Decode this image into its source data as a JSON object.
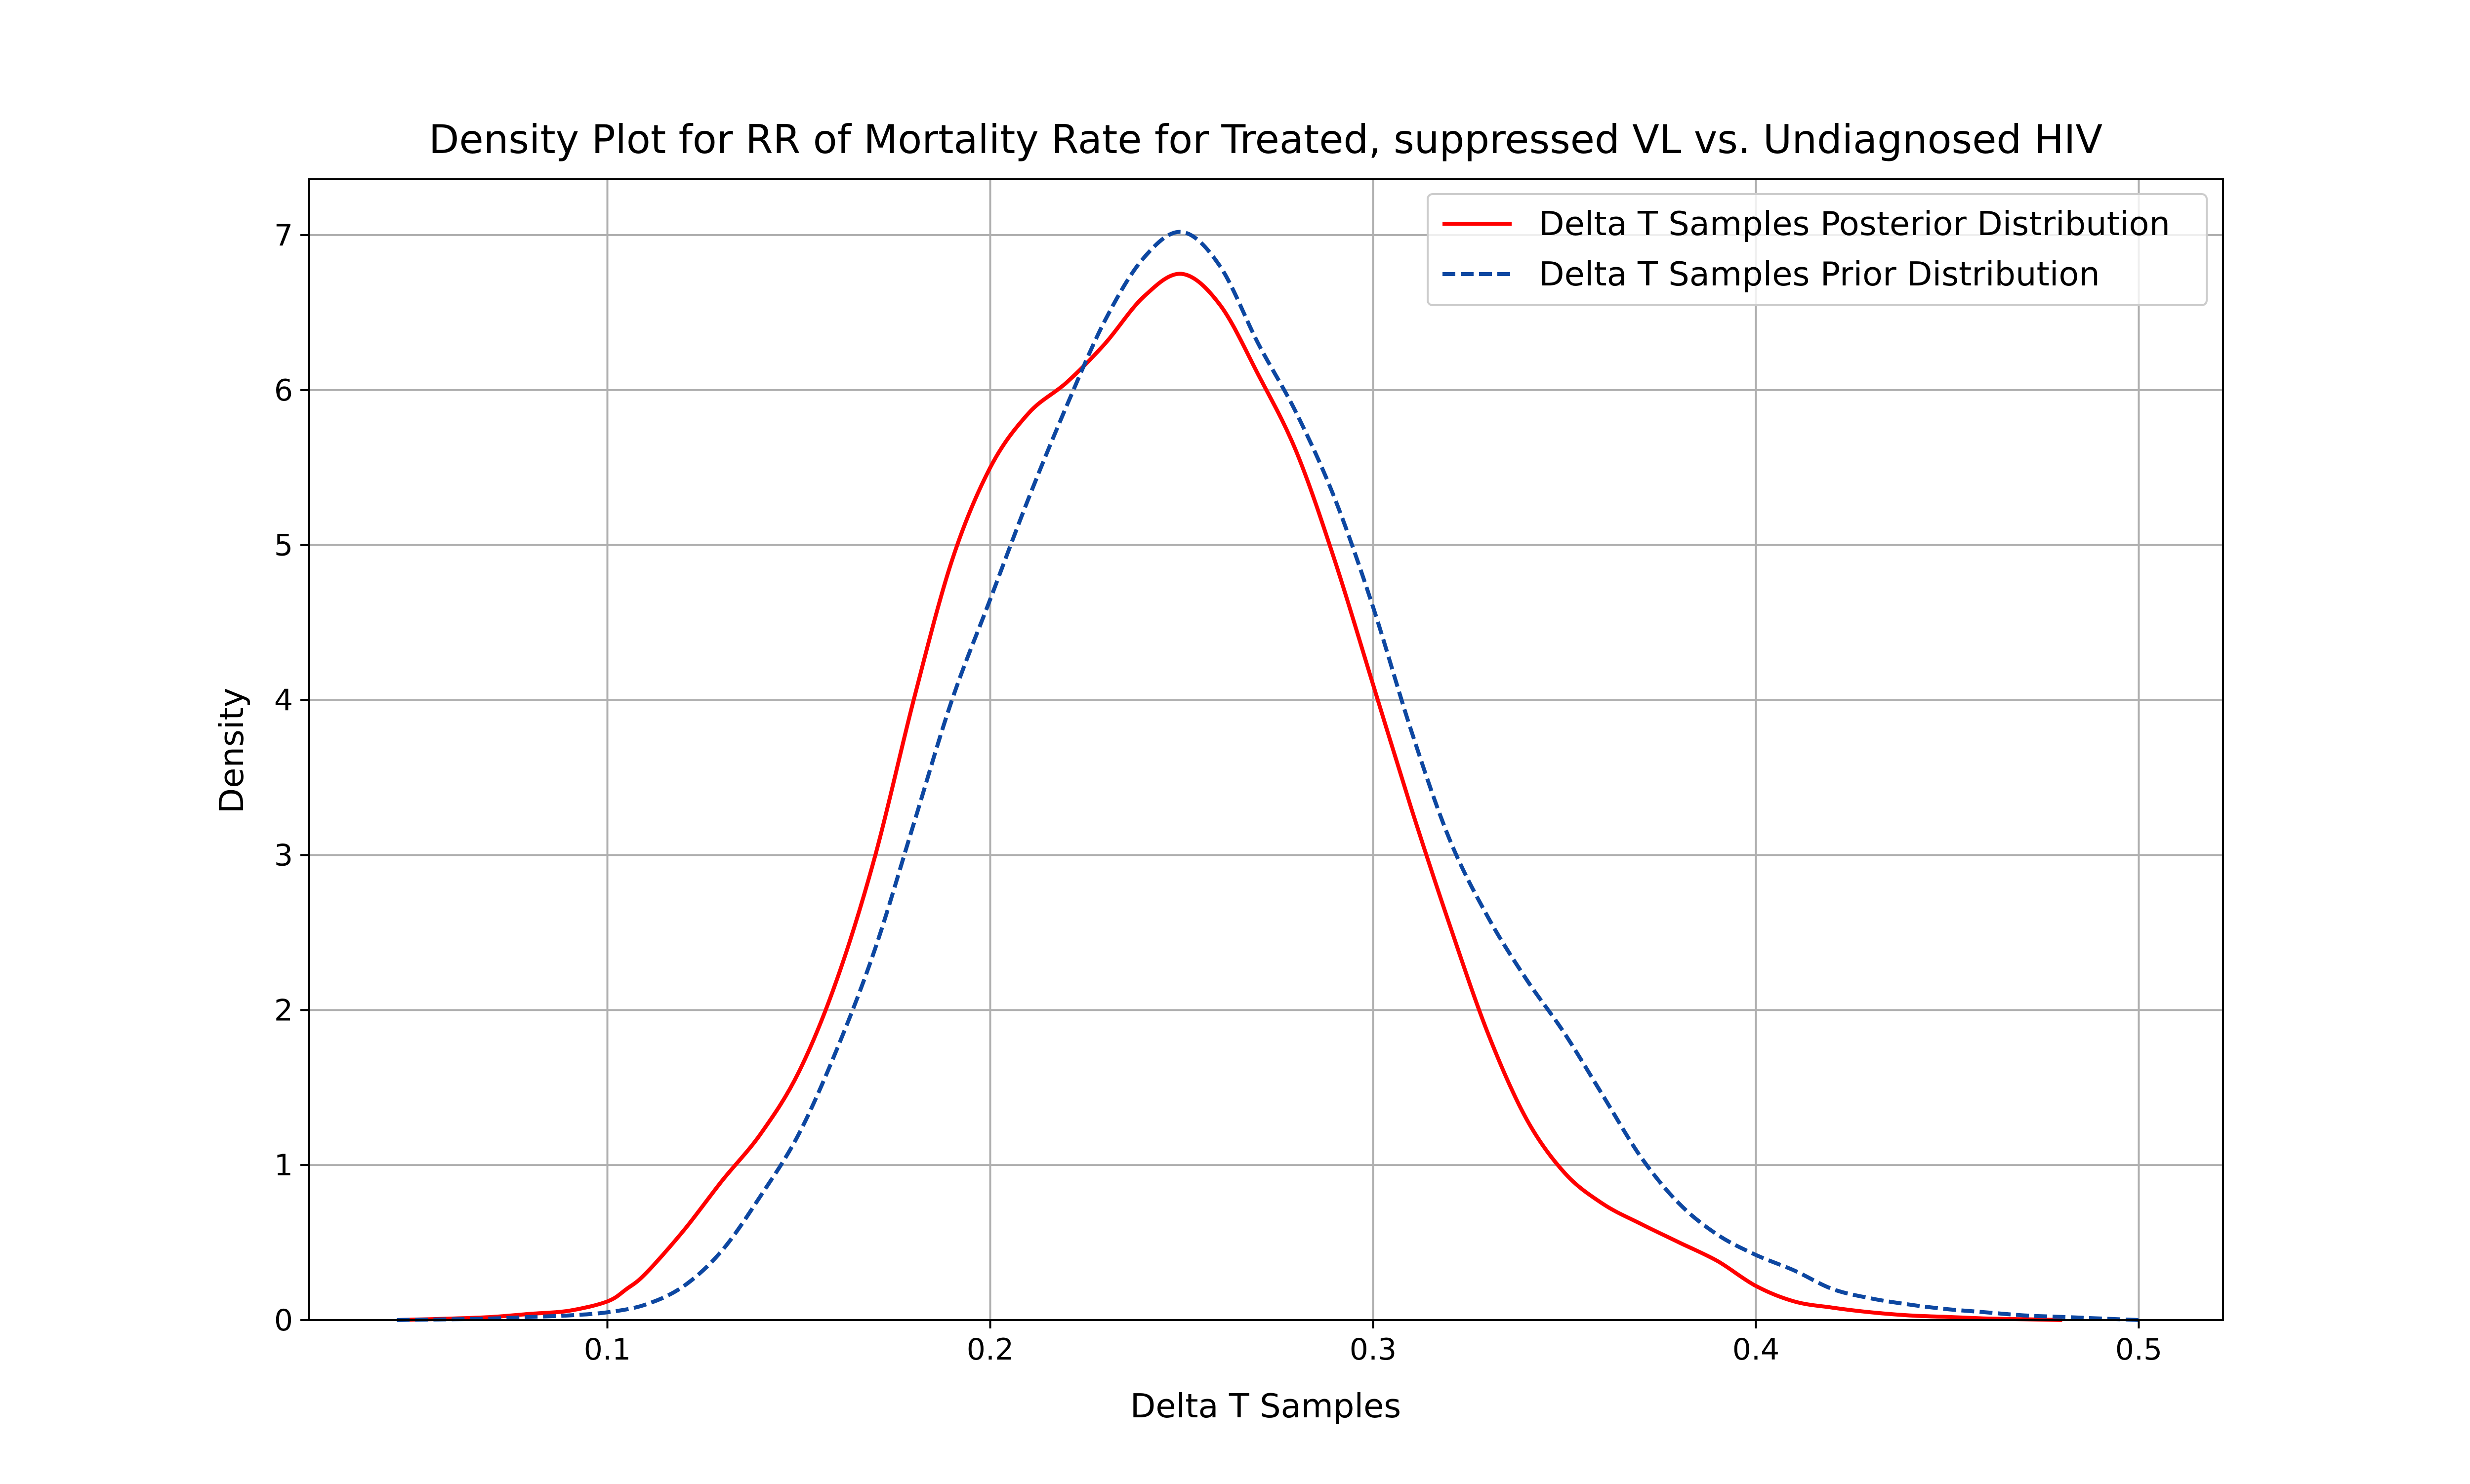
{
  "chart_data": {
    "type": "line",
    "title": "Density Plot for RR of Mortality Rate for Treated, suppressed VL vs. Undiagnosed HIV",
    "xlabel": "Delta T Samples",
    "ylabel": "Density",
    "xlim": [
      0.022,
      0.522
    ],
    "ylim": [
      0,
      7.36
    ],
    "xticks": [
      0.1,
      0.2,
      0.3,
      0.4,
      0.5
    ],
    "xtick_labels": [
      "0.1",
      "0.2",
      "0.3",
      "0.4",
      "0.5"
    ],
    "yticks": [
      0,
      1,
      2,
      3,
      4,
      5,
      6,
      7
    ],
    "ytick_labels": [
      "0",
      "1",
      "2",
      "3",
      "4",
      "5",
      "6",
      "7"
    ],
    "grid": true,
    "legend_position": "top-right",
    "series": [
      {
        "name": "Delta T Samples Posterior Distribution",
        "color": "#ff0000",
        "style": "solid",
        "x": [
          0.045,
          0.06,
          0.07,
          0.08,
          0.09,
          0.1,
          0.105,
          0.11,
          0.12,
          0.13,
          0.14,
          0.15,
          0.16,
          0.17,
          0.18,
          0.19,
          0.2,
          0.21,
          0.22,
          0.23,
          0.24,
          0.25,
          0.26,
          0.27,
          0.28,
          0.29,
          0.3,
          0.31,
          0.32,
          0.33,
          0.34,
          0.35,
          0.36,
          0.37,
          0.38,
          0.39,
          0.4,
          0.41,
          0.42,
          0.43,
          0.44,
          0.45,
          0.46,
          0.47,
          0.48
        ],
        "y": [
          0.0,
          0.01,
          0.02,
          0.04,
          0.06,
          0.12,
          0.2,
          0.3,
          0.58,
          0.9,
          1.2,
          1.6,
          2.2,
          3.0,
          4.0,
          4.9,
          5.5,
          5.85,
          6.05,
          6.3,
          6.6,
          6.75,
          6.55,
          6.1,
          5.6,
          4.9,
          4.1,
          3.3,
          2.55,
          1.85,
          1.3,
          0.95,
          0.75,
          0.62,
          0.5,
          0.38,
          0.22,
          0.12,
          0.08,
          0.05,
          0.03,
          0.02,
          0.01,
          0.005,
          0.0
        ]
      },
      {
        "name": "Delta T Samples Prior Distribution",
        "color": "#0d47a1",
        "style": "dashed",
        "x": [
          0.045,
          0.06,
          0.07,
          0.08,
          0.09,
          0.1,
          0.11,
          0.12,
          0.13,
          0.14,
          0.15,
          0.16,
          0.17,
          0.18,
          0.19,
          0.2,
          0.21,
          0.22,
          0.23,
          0.24,
          0.25,
          0.26,
          0.27,
          0.28,
          0.29,
          0.3,
          0.31,
          0.32,
          0.33,
          0.34,
          0.35,
          0.36,
          0.37,
          0.38,
          0.39,
          0.4,
          0.41,
          0.42,
          0.43,
          0.44,
          0.45,
          0.46,
          0.47,
          0.48,
          0.49,
          0.5
        ],
        "y": [
          0.0,
          0.005,
          0.01,
          0.02,
          0.03,
          0.05,
          0.1,
          0.22,
          0.45,
          0.8,
          1.2,
          1.75,
          2.4,
          3.2,
          4.0,
          4.65,
          5.3,
          5.9,
          6.45,
          6.85,
          7.02,
          6.8,
          6.3,
          5.85,
          5.3,
          4.6,
          3.8,
          3.1,
          2.6,
          2.2,
          1.85,
          1.45,
          1.05,
          0.75,
          0.55,
          0.42,
          0.32,
          0.2,
          0.14,
          0.1,
          0.07,
          0.05,
          0.03,
          0.02,
          0.01,
          0.0
        ]
      }
    ]
  }
}
